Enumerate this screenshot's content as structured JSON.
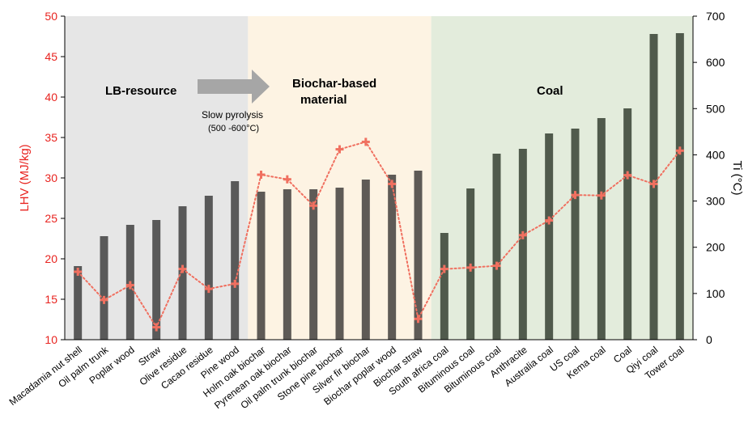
{
  "chart_data": {
    "type": "bar",
    "categories": [
      "Macadamia nut shell",
      "Oil palm trunk",
      "Poplar  wood",
      "Straw",
      "Olive residue",
      "Cacao residue",
      "Pine wood",
      "Holm oak biochar",
      "Pyrenean oak biochar",
      "Oil palm trunk biochar",
      "Stone pine biochar",
      "Silver fir biochar",
      "Biochar poplar wood",
      "Biochar straw",
      "South africa coal",
      "Bituminous coal",
      "Bituminous coal",
      "Anthracite",
      "Australia coal",
      "US coal",
      "Kema coal",
      "Coal",
      "Qiyi coal",
      "Tower coal"
    ],
    "series": [
      {
        "kind": "bar",
        "axis": "left",
        "values": [
          19.1,
          22.8,
          24.2,
          24.8,
          26.5,
          27.8,
          29.6,
          28.3,
          28.6,
          28.6,
          28.8,
          29.8,
          30.4,
          30.9,
          23.2,
          28.7,
          33.0,
          33.6,
          35.5,
          36.1,
          37.4,
          38.6,
          47.8,
          47.9
        ],
        "colors": [
          "#595959",
          "#595959",
          "#595959",
          "#595959",
          "#595959",
          "#595959",
          "#595959",
          "#5e5a56",
          "#5e5a56",
          "#5e5a56",
          "#5e5a56",
          "#5e5a56",
          "#5e5a56",
          "#5e5a56",
          "#505a4c",
          "#505a4c",
          "#505a4c",
          "#505a4c",
          "#505a4c",
          "#505a4c",
          "#505a4c",
          "#505a4c",
          "#505a4c",
          "#505a4c"
        ]
      },
      {
        "kind": "line",
        "axis": "right",
        "style": "dotted",
        "marker": "plus",
        "color": "#f07060",
        "values": [
          147,
          86,
          118,
          27,
          153,
          110,
          121,
          357,
          347,
          290,
          412,
          428,
          337,
          45,
          153,
          156,
          160,
          226,
          258,
          313,
          312,
          356,
          337,
          409
        ]
      }
    ],
    "y_left": {
      "label": "LHV (MJ/kg)",
      "range": [
        10,
        50
      ],
      "ticks": [
        "10",
        "15",
        "20",
        "25",
        "30",
        "35",
        "40",
        "45",
        "50"
      ],
      "color": "#e8231f"
    },
    "y_right": {
      "label": "Ti (°C)",
      "range": [
        0,
        700
      ],
      "ticks": [
        "0",
        "100",
        "200",
        "300",
        "400",
        "500",
        "600",
        "700"
      ],
      "color": "#000000"
    },
    "regions": [
      {
        "name": "LB-resource",
        "from_index": 0,
        "to_index": 6,
        "color": "#e6e6e6"
      },
      {
        "name": "Biochar-based material",
        "from_index": 7,
        "to_index": 13,
        "color": "#fdf3e3"
      },
      {
        "name": "Coal",
        "from_index": 14,
        "to_index": 23,
        "color": "#e3ecdc"
      }
    ],
    "annotations": {
      "region_labels": [
        "LB-resource",
        "Biochar-based",
        "material",
        "Coal"
      ],
      "arrow_text_line1": "Slow pyrolysis",
      "arrow_text_line2": "(500 -600°C)"
    },
    "grid": false,
    "legend": "none"
  }
}
